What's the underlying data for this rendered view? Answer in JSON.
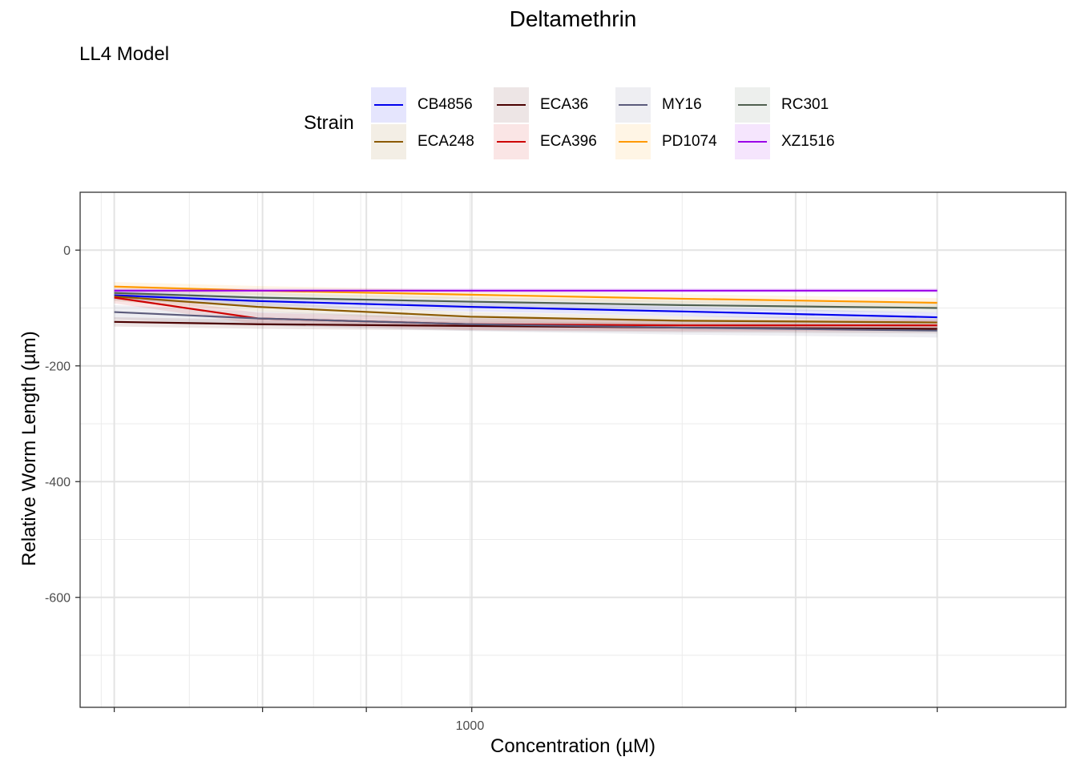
{
  "chart_data": {
    "type": "line",
    "title": "Deltamethrin",
    "subtitle": "LL4 Model",
    "xlabel": "Concentration (µM)",
    "ylabel": "Relative Worm Length (µm)",
    "x_scale": "log10",
    "xlim": [
      280,
      7000
    ],
    "ylim": [
      -790,
      100
    ],
    "x_ticks": [
      300,
      400,
      500,
      600,
      700,
      800,
      1000,
      2000,
      3000
    ],
    "x_tick_labels": [
      "",
      "",
      "",
      "",
      "",
      "",
      "1000",
      "",
      ""
    ],
    "x_tick_marks": [
      313,
      508,
      713,
      1006,
      2897,
      4600
    ],
    "y_ticks": [
      0,
      -200,
      -400,
      -600
    ],
    "y_tick_labels": [
      "0",
      "-200",
      "-400",
      "-600"
    ],
    "legend_title": "Strain",
    "legend_position": "top",
    "x": [
      313,
      500,
      1000,
      2000,
      4600
    ],
    "series": [
      {
        "name": "CB4856",
        "color": "#0000ee",
        "values": [
          -78,
          -88,
          -98,
          -106,
          -116
        ],
        "band": 8
      },
      {
        "name": "ECA248",
        "color": "#8b5a00",
        "values": [
          -80,
          -98,
          -115,
          -122,
          -125
        ],
        "band": 8
      },
      {
        "name": "ECA36",
        "color": "#4a0000",
        "values": [
          -124,
          -128,
          -131,
          -134,
          -136
        ],
        "band": 8
      },
      {
        "name": "ECA396",
        "color": "#cd0000",
        "values": [
          -82,
          -118,
          -128,
          -130,
          -130
        ],
        "band": 10
      },
      {
        "name": "MY16",
        "color": "#5b5b7b",
        "values": [
          -107,
          -118,
          -128,
          -134,
          -139
        ],
        "band": 12
      },
      {
        "name": "PD1074",
        "color": "#ff9900",
        "values": [
          -63,
          -70,
          -77,
          -84,
          -91
        ],
        "band": 8
      },
      {
        "name": "RC301",
        "color": "#506050",
        "values": [
          -74,
          -82,
          -89,
          -95,
          -100
        ],
        "band": 8
      },
      {
        "name": "XZ1516",
        "color": "#9a00e8",
        "values": [
          -70,
          -70,
          -70,
          -70,
          -70
        ],
        "band": 4
      }
    ]
  }
}
